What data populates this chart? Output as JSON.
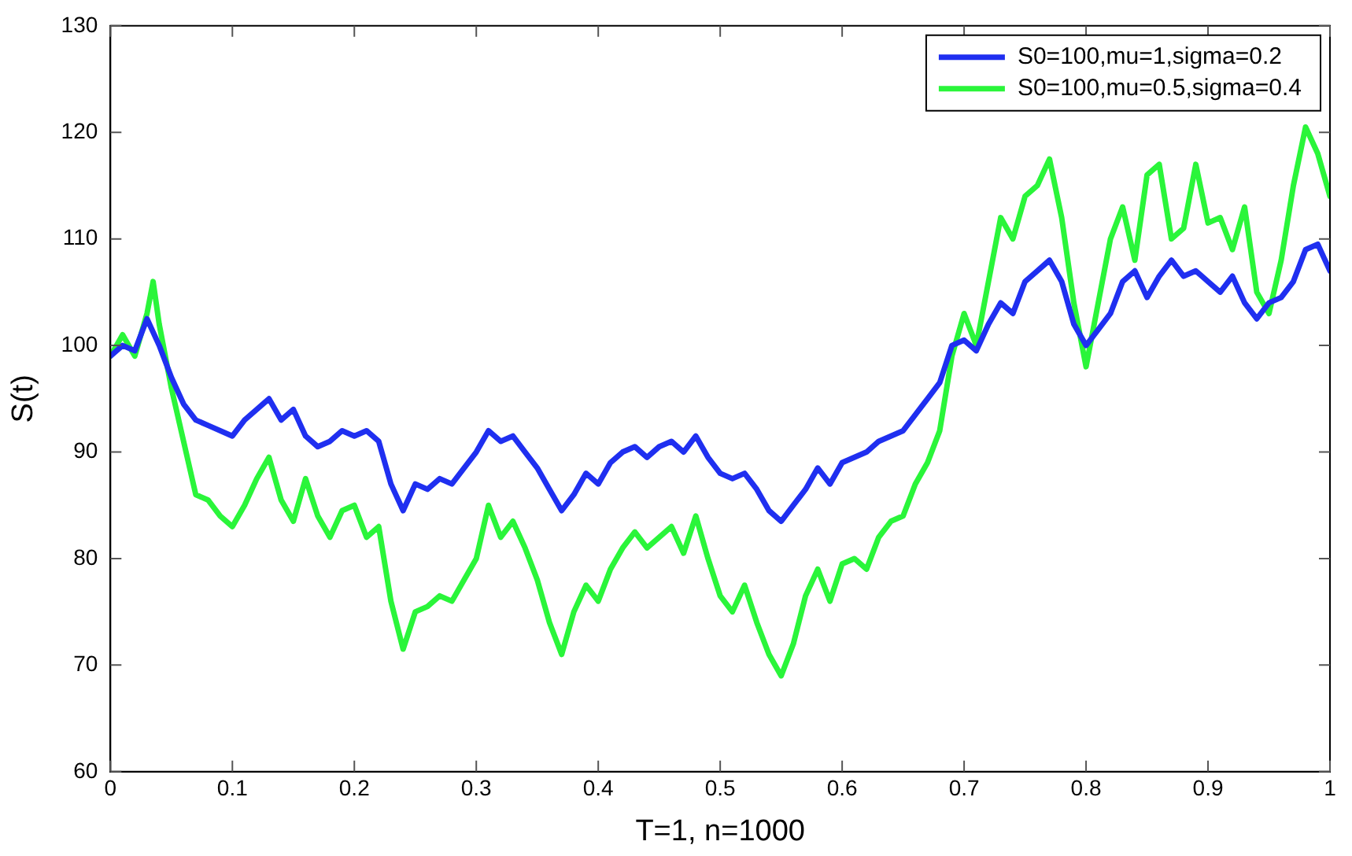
{
  "chart_data": {
    "type": "line",
    "xlabel": "T=1, n=1000",
    "ylabel": "S(t)",
    "xlim": [
      0,
      1
    ],
    "xticks": [
      0,
      0.1,
      0.2,
      0.3,
      0.4,
      0.5,
      0.6,
      0.7,
      0.8,
      0.9,
      1
    ],
    "ylim": [
      60,
      130
    ],
    "yticks": [
      60,
      70,
      80,
      90,
      100,
      110,
      120,
      130
    ],
    "grid": false,
    "legend": "top right",
    "marker": "none",
    "line_style": "solid",
    "series": [
      {
        "name": "S0=100,mu=1,sigma=0.2",
        "color": "#1f2ff0",
        "x": [
          0,
          0.01,
          0.02,
          0.03,
          0.04,
          0.05,
          0.06,
          0.07,
          0.08,
          0.1,
          0.11,
          0.12,
          0.13,
          0.14,
          0.15,
          0.16,
          0.17,
          0.18,
          0.19,
          0.2,
          0.21,
          0.22,
          0.23,
          0.24,
          0.25,
          0.26,
          0.27,
          0.28,
          0.29,
          0.3,
          0.31,
          0.32,
          0.33,
          0.34,
          0.35,
          0.36,
          0.37,
          0.38,
          0.39,
          0.4,
          0.41,
          0.42,
          0.43,
          0.44,
          0.45,
          0.46,
          0.47,
          0.48,
          0.49,
          0.5,
          0.51,
          0.52,
          0.53,
          0.54,
          0.55,
          0.56,
          0.57,
          0.58,
          0.59,
          0.6,
          0.61,
          0.62,
          0.63,
          0.64,
          0.65,
          0.66,
          0.67,
          0.68,
          0.69,
          0.7,
          0.71,
          0.72,
          0.73,
          0.74,
          0.75,
          0.76,
          0.77,
          0.78,
          0.79,
          0.8,
          0.81,
          0.82,
          0.83,
          0.84,
          0.85,
          0.86,
          0.87,
          0.88,
          0.89,
          0.9,
          0.91,
          0.92,
          0.93,
          0.94,
          0.95,
          0.96,
          0.97,
          0.98,
          0.99,
          1
        ],
        "values": [
          99,
          100,
          99.5,
          102.5,
          100,
          97,
          94.5,
          93,
          92.5,
          91.5,
          93,
          94,
          95,
          93,
          94,
          91.5,
          90.5,
          91,
          92,
          91.5,
          92,
          91,
          87,
          84.5,
          87,
          86.5,
          87.5,
          87,
          88.5,
          90,
          92,
          91,
          91.5,
          90,
          88.5,
          86.5,
          84.5,
          86,
          88,
          87,
          89,
          90,
          90.5,
          89.5,
          90.5,
          91,
          90,
          91.5,
          89.5,
          88,
          87.5,
          88,
          86.5,
          84.5,
          83.5,
          85,
          86.5,
          88.5,
          87,
          89,
          89.5,
          90,
          91,
          91.5,
          92,
          93.5,
          95,
          96.5,
          100,
          100.5,
          99.5,
          102,
          104,
          103,
          106,
          107,
          108,
          106,
          102,
          100,
          101.5,
          103,
          106,
          107,
          104.5,
          106.5,
          108,
          106.5,
          107,
          106,
          105,
          106.5,
          104,
          102.5,
          104,
          104.5,
          106,
          109,
          109.5,
          107
        ]
      },
      {
        "name": "S0=100,mu=0.5,sigma=0.4",
        "color": "#2af53a",
        "x": [
          0,
          0.01,
          0.02,
          0.03,
          0.035,
          0.04,
          0.05,
          0.06,
          0.07,
          0.08,
          0.09,
          0.1,
          0.11,
          0.12,
          0.13,
          0.14,
          0.15,
          0.16,
          0.17,
          0.18,
          0.19,
          0.2,
          0.21,
          0.22,
          0.23,
          0.24,
          0.25,
          0.26,
          0.27,
          0.28,
          0.29,
          0.3,
          0.31,
          0.32,
          0.33,
          0.34,
          0.35,
          0.36,
          0.37,
          0.38,
          0.39,
          0.4,
          0.41,
          0.42,
          0.43,
          0.44,
          0.45,
          0.46,
          0.47,
          0.48,
          0.49,
          0.5,
          0.51,
          0.52,
          0.53,
          0.54,
          0.55,
          0.56,
          0.57,
          0.58,
          0.59,
          0.6,
          0.61,
          0.62,
          0.63,
          0.64,
          0.65,
          0.66,
          0.67,
          0.68,
          0.69,
          0.7,
          0.71,
          0.72,
          0.73,
          0.74,
          0.75,
          0.76,
          0.77,
          0.78,
          0.79,
          0.8,
          0.81,
          0.82,
          0.83,
          0.84,
          0.85,
          0.86,
          0.87,
          0.88,
          0.89,
          0.9,
          0.91,
          0.92,
          0.93,
          0.94,
          0.95,
          0.96,
          0.97,
          0.98,
          0.99,
          1
        ],
        "values": [
          99,
          101,
          99,
          103,
          106,
          102,
          96,
          91,
          86,
          85.5,
          84,
          83,
          85,
          87.5,
          89.5,
          85.5,
          83.5,
          87.5,
          84,
          82,
          84.5,
          85,
          82,
          83,
          76,
          71.5,
          75,
          75.5,
          76.5,
          76,
          78,
          80,
          85,
          82,
          83.5,
          81,
          78,
          74,
          71,
          75,
          77.5,
          76,
          79,
          81,
          82.5,
          81,
          82,
          83,
          80.5,
          84,
          80,
          76.5,
          75,
          77.5,
          74,
          71,
          69,
          72,
          76.5,
          79,
          76,
          79.5,
          80,
          79,
          82,
          83.5,
          84,
          87,
          89,
          92,
          99,
          103,
          100,
          106,
          112,
          110,
          114,
          115,
          117.5,
          112,
          104,
          98,
          104,
          110,
          113,
          108,
          116,
          117,
          110,
          111,
          117,
          111.5,
          112,
          109,
          113,
          105,
          103,
          108,
          115,
          120.5,
          118,
          114
        ]
      }
    ]
  }
}
